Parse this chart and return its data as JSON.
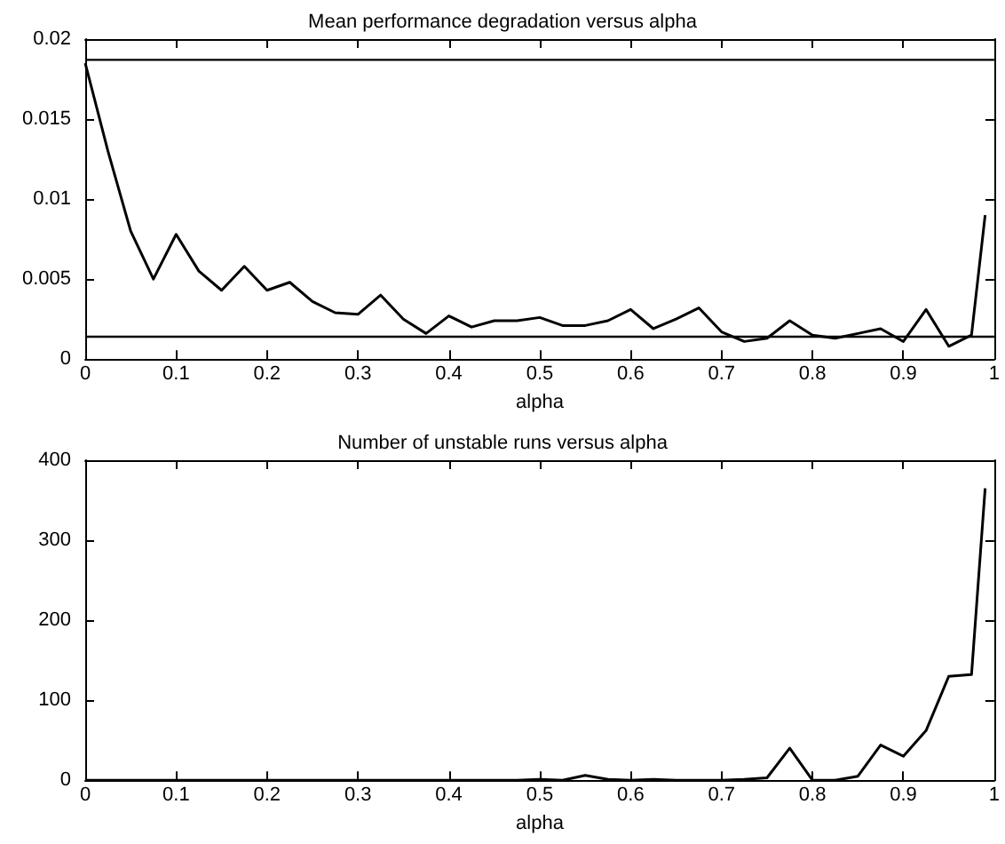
{
  "chart_data": [
    {
      "type": "line",
      "title": "Mean performance degradation versus alpha",
      "xlabel": "alpha",
      "x": [
        0,
        0.025,
        0.05,
        0.075,
        0.1,
        0.125,
        0.15,
        0.175,
        0.2,
        0.225,
        0.25,
        0.275,
        0.3,
        0.325,
        0.35,
        0.375,
        0.4,
        0.425,
        0.45,
        0.475,
        0.5,
        0.525,
        0.55,
        0.575,
        0.6,
        0.625,
        0.65,
        0.675,
        0.7,
        0.725,
        0.75,
        0.775,
        0.8,
        0.825,
        0.85,
        0.875,
        0.9,
        0.925,
        0.95,
        0.975,
        0.99
      ],
      "series": [
        {
          "color": "#000000",
          "values": [
            0.0185,
            0.013,
            0.008,
            0.005,
            0.0078,
            0.0055,
            0.0043,
            0.0058,
            0.0043,
            0.0048,
            0.0036,
            0.0029,
            0.0028,
            0.004,
            0.0025,
            0.0016,
            0.0027,
            0.002,
            0.0024,
            0.0024,
            0.0026,
            0.0021,
            0.0021,
            0.0024,
            0.0031,
            0.0019,
            0.0025,
            0.0032,
            0.0017,
            0.0011,
            0.0013,
            0.0024,
            0.0015,
            0.0013,
            0.0016,
            0.0019,
            0.0011,
            0.0031,
            0.0008,
            0.0015,
            0.009
          ]
        }
      ],
      "ref_lines": [
        {
          "axis": "y",
          "value": 0.0187,
          "color": "#000000"
        },
        {
          "axis": "y",
          "value": 0.0014,
          "color": "#000000"
        }
      ],
      "xlim": [
        0,
        1
      ],
      "xticks": [
        0,
        0.1,
        0.2,
        0.3,
        0.4,
        0.5,
        0.6,
        0.7,
        0.8,
        0.9,
        1
      ],
      "ylim": [
        0,
        0.02
      ],
      "yticks": [
        0,
        0.005,
        0.01,
        0.015,
        0.02
      ],
      "grid": false,
      "marker": "none",
      "line_style": "solid"
    },
    {
      "type": "line",
      "title": "Number of unstable runs versus alpha",
      "xlabel": "alpha",
      "x": [
        0,
        0.025,
        0.05,
        0.075,
        0.1,
        0.125,
        0.15,
        0.175,
        0.2,
        0.225,
        0.25,
        0.275,
        0.3,
        0.325,
        0.35,
        0.375,
        0.4,
        0.425,
        0.45,
        0.475,
        0.5,
        0.525,
        0.55,
        0.575,
        0.6,
        0.625,
        0.65,
        0.675,
        0.7,
        0.725,
        0.75,
        0.775,
        0.8,
        0.825,
        0.85,
        0.875,
        0.9,
        0.925,
        0.95,
        0.975,
        0.99
      ],
      "series": [
        {
          "color": "#000000",
          "values": [
            0,
            0,
            0,
            0,
            0,
            0,
            0,
            0,
            0,
            0,
            0,
            0,
            0,
            0,
            0,
            0,
            0,
            0,
            0,
            0,
            1,
            0,
            6,
            1,
            0,
            1,
            0,
            0,
            0,
            1,
            3,
            40,
            0,
            0,
            5,
            44,
            30,
            62,
            130,
            132,
            365
          ]
        }
      ],
      "xlim": [
        0,
        1
      ],
      "xticks": [
        0,
        0.1,
        0.2,
        0.3,
        0.4,
        0.5,
        0.6,
        0.7,
        0.8,
        0.9,
        1
      ],
      "ylim": [
        0,
        400
      ],
      "yticks": [
        0,
        100,
        200,
        300,
        400
      ],
      "grid": false,
      "marker": "none",
      "line_style": "solid"
    }
  ]
}
